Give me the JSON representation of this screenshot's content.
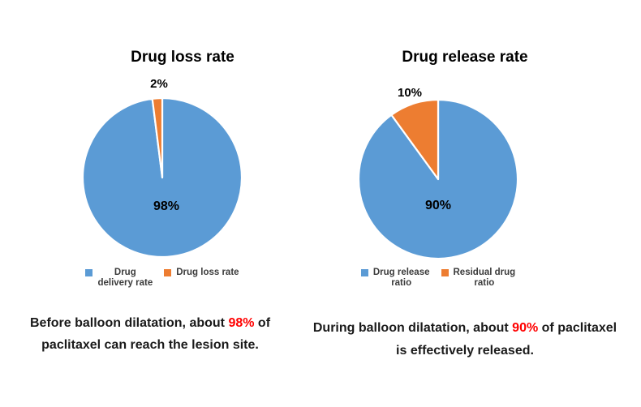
{
  "colors": {
    "blue": "#5B9BD5",
    "orange": "#ED7D31",
    "highlight_red": "#FF0000",
    "background": "#FFFFFF"
  },
  "chart_data": [
    {
      "type": "pie",
      "title": "Drug loss rate",
      "start_angle_deg": 0,
      "direction": "clockwise",
      "legend_position": "bottom",
      "slices": [
        {
          "label": "Drug delivery rate",
          "value": 98,
          "data_label": "98%",
          "color": "#5B9BD5",
          "label_placement": "inside"
        },
        {
          "label": "Drug loss rate",
          "value": 2,
          "data_label": "2%",
          "color": "#ED7D31",
          "label_placement": "outside"
        }
      ]
    },
    {
      "type": "pie",
      "title": "Drug release rate",
      "start_angle_deg": 0,
      "direction": "clockwise",
      "legend_position": "bottom",
      "slices": [
        {
          "label": "Drug release ratio",
          "value": 90,
          "data_label": "90%",
          "color": "#5B9BD5",
          "label_placement": "inside"
        },
        {
          "label": "Residual drug ratio",
          "value": 10,
          "data_label": "10%",
          "color": "#ED7D31",
          "label_placement": "outside"
        }
      ]
    }
  ],
  "left": {
    "title": "Drug loss rate",
    "outside_label": "2%",
    "inside_label": "98%",
    "legend": [
      {
        "label": "Drug\ndelivery rate"
      },
      {
        "label": "Drug loss rate"
      }
    ],
    "caption": {
      "line1_before": "Before balloon dilatation, about ",
      "highlight": "98%",
      "line1_after": " of",
      "line2": "paclitaxel can reach the lesion site."
    }
  },
  "right": {
    "title": "Drug release rate",
    "outside_label": "10%",
    "inside_label": "90%",
    "legend": [
      {
        "label": "Drug release\nratio"
      },
      {
        "label": "Residual drug\nratio"
      }
    ],
    "caption": {
      "line1_before": "During balloon dilatation, about ",
      "highlight": "90%",
      "line1_after": " of paclitaxel",
      "line2": "is effectively released."
    }
  }
}
